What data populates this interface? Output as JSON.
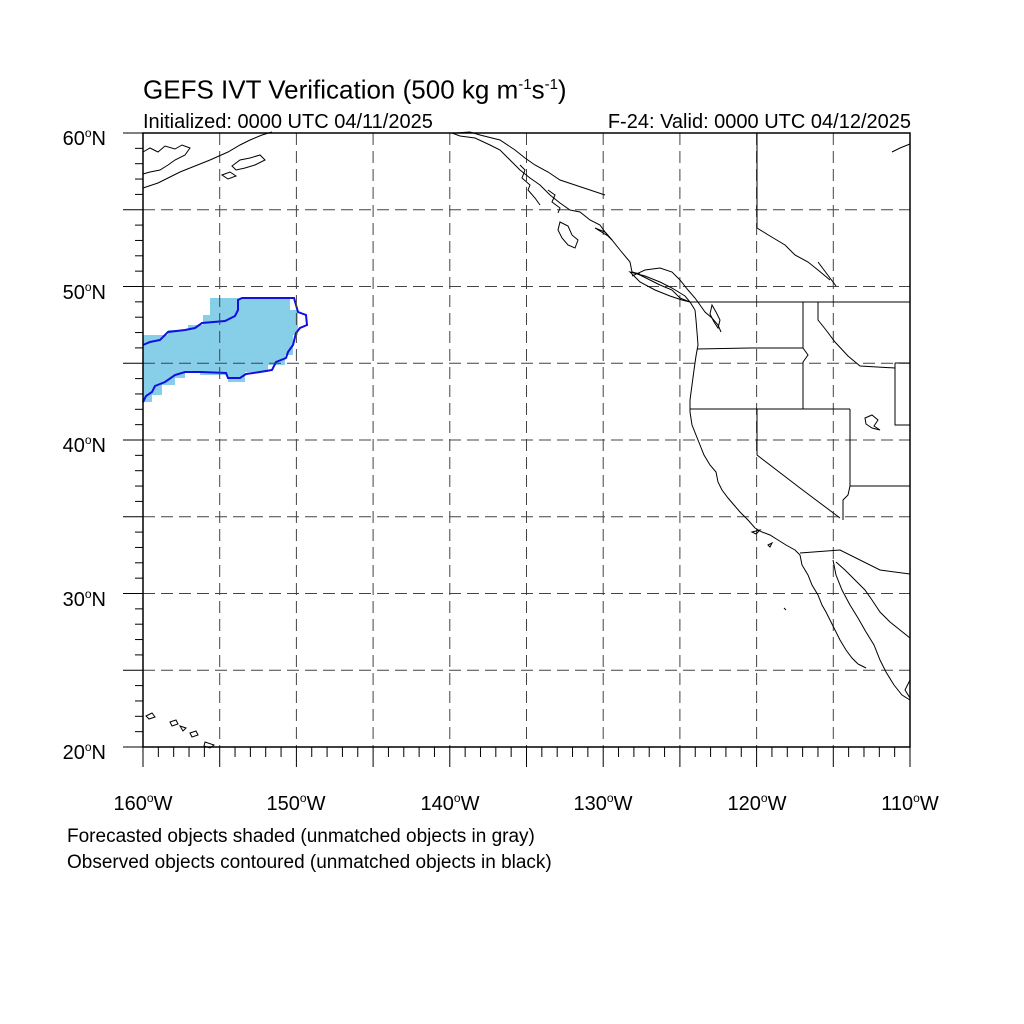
{
  "title": {
    "text": "GEFS IVT Verification (500 kg m",
    "exp1": "-1",
    "mid": "s",
    "exp2": "-1",
    "end": ")"
  },
  "initialized": "Initialized: 0000 UTC 04/11/2025",
  "valid": "F-24: Valid: 0000 UTC 04/12/2025",
  "axes": {
    "lat_labels": [
      {
        "value": 60,
        "text": "60",
        "hem": "N"
      },
      {
        "value": 50,
        "text": "50",
        "hem": "N"
      },
      {
        "value": 40,
        "text": "40",
        "hem": "N"
      },
      {
        "value": 30,
        "text": "30",
        "hem": "N"
      },
      {
        "value": 20,
        "text": "20",
        "hem": "N"
      }
    ],
    "lon_labels": [
      {
        "value": -160,
        "text": "160",
        "hem": "W"
      },
      {
        "value": -150,
        "text": "150",
        "hem": "W"
      },
      {
        "value": -140,
        "text": "140",
        "hem": "W"
      },
      {
        "value": -130,
        "text": "130",
        "hem": "W"
      },
      {
        "value": -120,
        "text": "120",
        "hem": "W"
      },
      {
        "value": -110,
        "text": "110",
        "hem": "W"
      }
    ],
    "lon_range": [
      -160,
      -110
    ],
    "lat_range": [
      20,
      60
    ],
    "gridlines": "dashed, every 5 degrees"
  },
  "legend": {
    "line1": "Forecasted objects shaded (unmatched objects in gray)",
    "line2": "Observed objects contoured (unmatched objects in black)"
  },
  "colors": {
    "forecast_fill": "#87CEE8",
    "observed_contour": "#1010E0",
    "coast": "#000000",
    "grid": "#555555"
  },
  "objects": {
    "forecast_shaded": {
      "approx_lon": [
        -160,
        -151
      ],
      "approx_lat": [
        42,
        49
      ],
      "matched": true
    },
    "observed_contour": {
      "approx_lon": [
        -160,
        -149
      ],
      "approx_lat": [
        43,
        49.5
      ],
      "matched": true
    }
  }
}
